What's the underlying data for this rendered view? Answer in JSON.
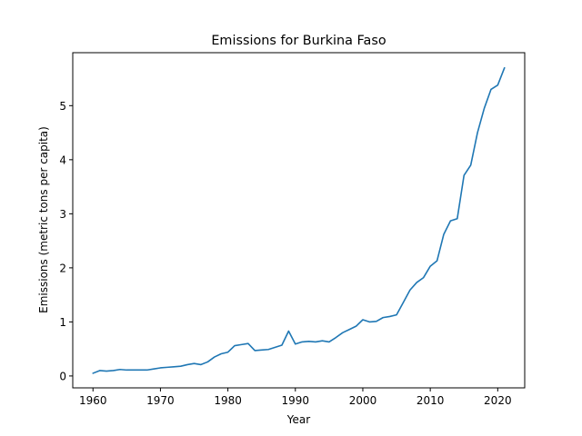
{
  "chart_data": {
    "type": "line",
    "title": "Emissions for Burkina Faso",
    "xlabel": "Year",
    "ylabel": "Emissions (metric tons per capita)",
    "xlim": [
      1957,
      2024
    ],
    "ylim": [
      -0.22,
      5.98
    ],
    "xticks": [
      1960,
      1970,
      1980,
      1990,
      2000,
      2010,
      2020
    ],
    "yticks": [
      0,
      1,
      2,
      3,
      4,
      5
    ],
    "grid": false,
    "series_color": "#1f77b4",
    "x": [
      1960,
      1961,
      1962,
      1963,
      1964,
      1965,
      1966,
      1967,
      1968,
      1969,
      1970,
      1971,
      1972,
      1973,
      1974,
      1975,
      1976,
      1977,
      1978,
      1979,
      1980,
      1981,
      1982,
      1983,
      1984,
      1985,
      1986,
      1987,
      1988,
      1989,
      1990,
      1991,
      1992,
      1993,
      1994,
      1995,
      1996,
      1997,
      1998,
      1999,
      2000,
      2001,
      2002,
      2003,
      2004,
      2005,
      2006,
      2007,
      2008,
      2009,
      2010,
      2011,
      2012,
      2013,
      2014,
      2015,
      2016,
      2017,
      2018,
      2019,
      2020,
      2021
    ],
    "y": [
      0.05,
      0.1,
      0.09,
      0.1,
      0.12,
      0.11,
      0.11,
      0.11,
      0.11,
      0.13,
      0.15,
      0.16,
      0.17,
      0.18,
      0.21,
      0.23,
      0.21,
      0.26,
      0.35,
      0.41,
      0.44,
      0.56,
      0.58,
      0.6,
      0.47,
      0.48,
      0.49,
      0.53,
      0.57,
      0.83,
      0.59,
      0.63,
      0.64,
      0.63,
      0.65,
      0.63,
      0.71,
      0.8,
      0.86,
      0.92,
      1.04,
      1.0,
      1.01,
      1.08,
      1.1,
      1.13,
      1.36,
      1.59,
      1.73,
      1.82,
      2.03,
      2.13,
      2.62,
      2.87,
      2.91,
      3.71,
      3.9,
      4.5,
      4.95,
      5.3,
      5.38,
      5.7
    ]
  }
}
